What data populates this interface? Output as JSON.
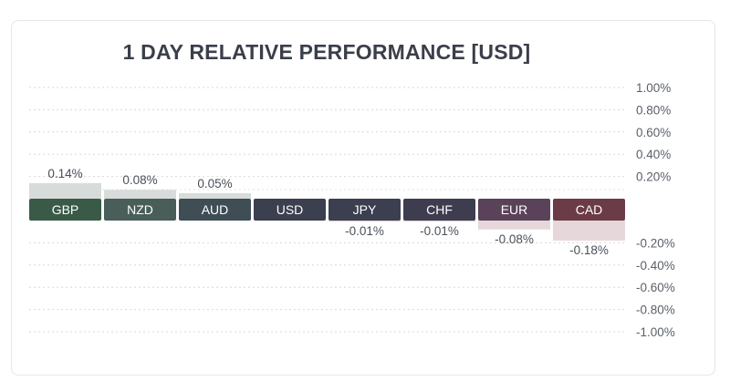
{
  "chart_data": {
    "type": "bar",
    "title": "1 DAY RELATIVE PERFORMANCE  [USD]",
    "categories": [
      "GBP",
      "NZD",
      "AUD",
      "USD",
      "JPY",
      "CHF",
      "EUR",
      "CAD"
    ],
    "values": [
      0.14,
      0.08,
      0.05,
      0.0,
      -0.01,
      -0.01,
      -0.08,
      -0.18
    ],
    "value_labels": [
      "0.14%",
      "0.08%",
      "0.05%",
      "",
      "-0.01%",
      "-0.01%",
      "-0.08%",
      "-0.18%"
    ],
    "ylim": [
      -1.0,
      1.0
    ],
    "pos_ticks": [
      "1.00%",
      "0.80%",
      "0.60%",
      "0.40%",
      "0.20%"
    ],
    "neg_ticks": [
      "-0.20%",
      "-0.40%",
      "-0.60%",
      "-0.80%",
      "-1.00%"
    ],
    "grid": true,
    "label_colors": [
      "#3a5a48",
      "#4a5e59",
      "#3f4e55",
      "#3b3f4e",
      "#3c3f50",
      "#3e3d50",
      "#5a4258",
      "#6b3c48"
    ],
    "bar_color_positive": "#d7dcda",
    "bar_color_negative": "#e5d7da",
    "label_text_color": "#ffffff"
  }
}
